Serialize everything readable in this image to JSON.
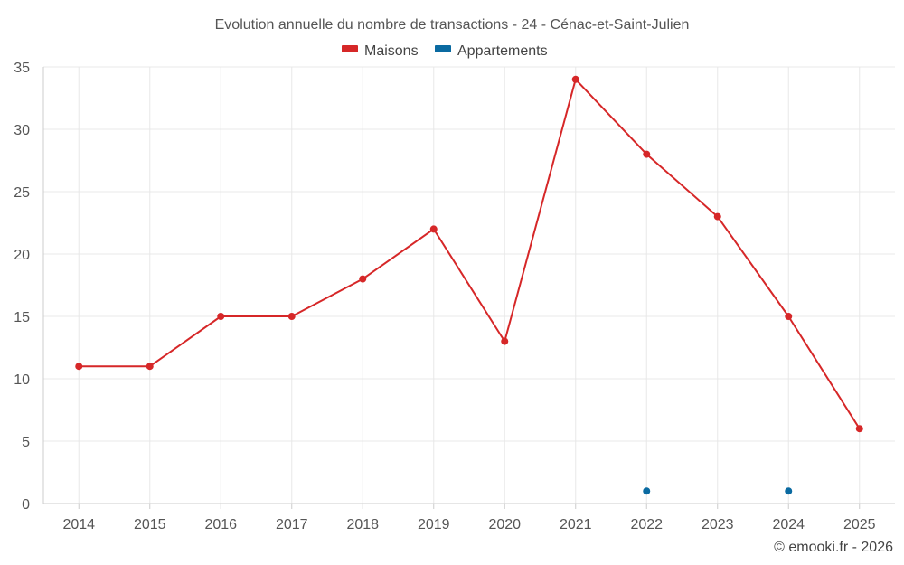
{
  "chart_data": {
    "type": "line",
    "title": "Evolution annuelle du nombre de transactions - 24 - Cénac-et-Saint-Julien",
    "categories": [
      "2014",
      "2015",
      "2016",
      "2017",
      "2018",
      "2019",
      "2020",
      "2021",
      "2022",
      "2023",
      "2024",
      "2025"
    ],
    "series": [
      {
        "name": "Maisons",
        "color": "#d62728",
        "values": [
          11,
          11,
          15,
          15,
          18,
          22,
          13,
          34,
          28,
          23,
          15,
          6
        ]
      },
      {
        "name": "Appartements",
        "color": "#0a6aa1",
        "values": [
          null,
          null,
          null,
          null,
          null,
          null,
          null,
          null,
          1,
          null,
          1,
          null
        ]
      }
    ],
    "yticks": [
      "0",
      "5",
      "10",
      "15",
      "20",
      "25",
      "30",
      "35"
    ],
    "ylim": [
      0,
      35
    ],
    "grid": true,
    "legend_position": "top-center"
  },
  "credit": "© emooki.fr - 2026"
}
